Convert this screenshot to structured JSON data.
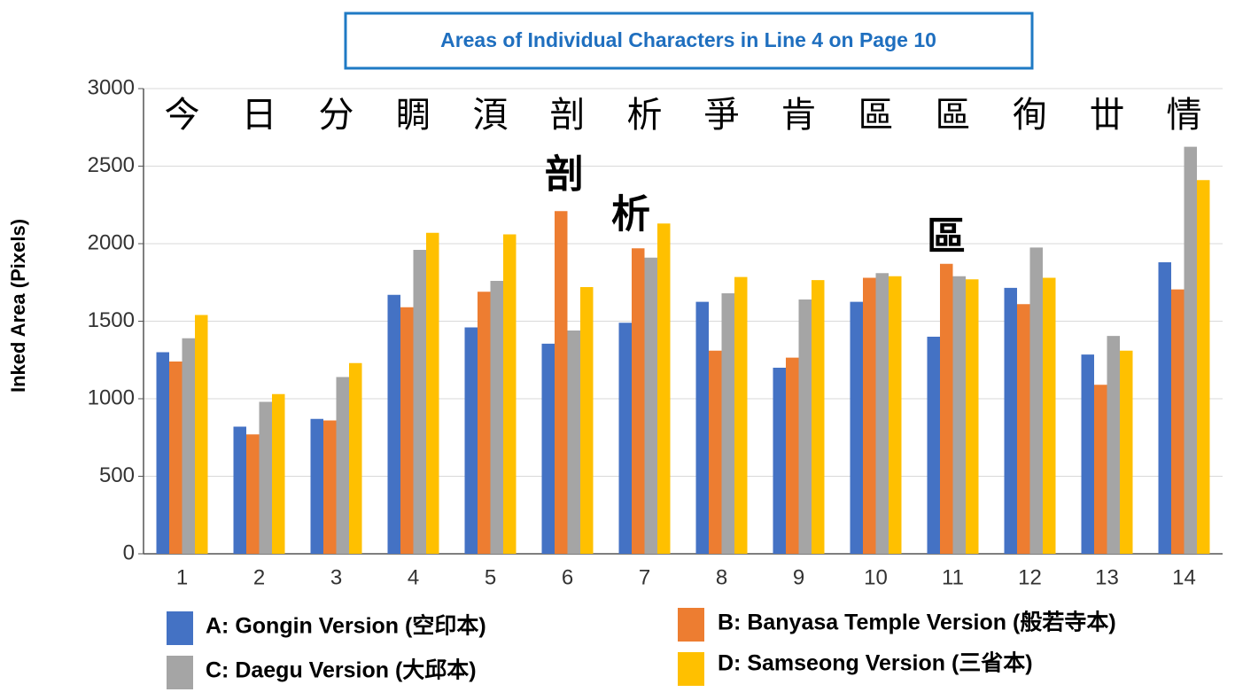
{
  "chart_data": {
    "type": "bar",
    "title": "Areas of Individual Characters in Line 4 on Page 10",
    "y_label": "Inked Area (Pixels)",
    "categories": [
      "1",
      "2",
      "3",
      "4",
      "5",
      "6",
      "7",
      "8",
      "9",
      "10",
      "11",
      "12",
      "13",
      "14"
    ],
    "character_labels": [
      "今",
      "日",
      "分",
      "睭",
      "湏",
      "剖",
      "析",
      "爭",
      "肯",
      "區",
      "區",
      "徇",
      "丗",
      "情"
    ],
    "annotations": [
      {
        "text": "剖"
      },
      {
        "text": "析"
      },
      {
        "text": "區"
      }
    ],
    "series": [
      {
        "name": "A: Gongin Version (空印本)",
        "color": "#4472c4",
        "values": [
          1300,
          820,
          870,
          1670,
          1460,
          1355,
          1490,
          1625,
          1200,
          1625,
          1400,
          1715,
          1285,
          1880
        ]
      },
      {
        "name": "B: Banyasa Temple Version (般若寺本)",
        "color": "#ed7d31",
        "values": [
          1240,
          770,
          860,
          1590,
          1690,
          2210,
          1970,
          1310,
          1265,
          1780,
          1870,
          1610,
          1090,
          1705
        ]
      },
      {
        "name": "C: Daegu Version (大邱本)",
        "color": "#a5a5a5",
        "values": [
          1390,
          980,
          1140,
          1960,
          1760,
          1440,
          1910,
          1680,
          1640,
          1810,
          1790,
          1975,
          1405,
          2625
        ]
      },
      {
        "name": "D: Samseong Version (三省本)",
        "color": "#ffc000",
        "values": [
          1540,
          1030,
          1230,
          2070,
          2060,
          1720,
          2130,
          1785,
          1765,
          1790,
          1770,
          1780,
          1310,
          2410
        ]
      }
    ],
    "ylim": [
      0,
      3000
    ],
    "yticks": [
      0,
      500,
      1000,
      1500,
      2000,
      2500,
      3000
    ],
    "grid": true
  }
}
